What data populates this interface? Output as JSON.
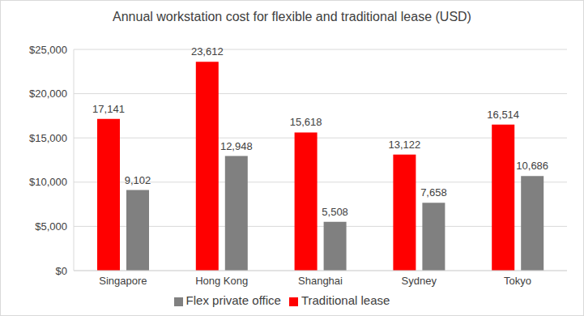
{
  "chart_data": {
    "type": "bar",
    "title": "Annual workstation cost for flexible and traditional lease (USD)",
    "categories": [
      "Singapore",
      "Hong Kong",
      "Shanghai",
      "Sydney",
      "Tokyo"
    ],
    "series": [
      {
        "name": "Traditional lease",
        "color": "#ff0000",
        "values": [
          17141,
          23612,
          15618,
          13122,
          16514
        ],
        "value_labels": [
          "17,141",
          "23,612",
          "15,618",
          "13,122",
          "16,514"
        ]
      },
      {
        "name": "Flex private office",
        "color": "#808080",
        "values": [
          9102,
          12948,
          5508,
          7658,
          10686
        ],
        "value_labels": [
          "9,102",
          "12,948",
          "5,508",
          "7,658",
          "10,686"
        ]
      }
    ],
    "ylim": [
      0,
      25000
    ],
    "yticks": [
      {
        "value": 0,
        "label": "$0"
      },
      {
        "value": 5000,
        "label": "$5,000"
      },
      {
        "value": 10000,
        "label": "$10,000"
      },
      {
        "value": 15000,
        "label": "$15,000"
      },
      {
        "value": 20000,
        "label": "$20,000"
      },
      {
        "value": 25000,
        "label": "$25,000"
      }
    ],
    "grid": true,
    "legend": "bottom",
    "data_labels": true
  }
}
